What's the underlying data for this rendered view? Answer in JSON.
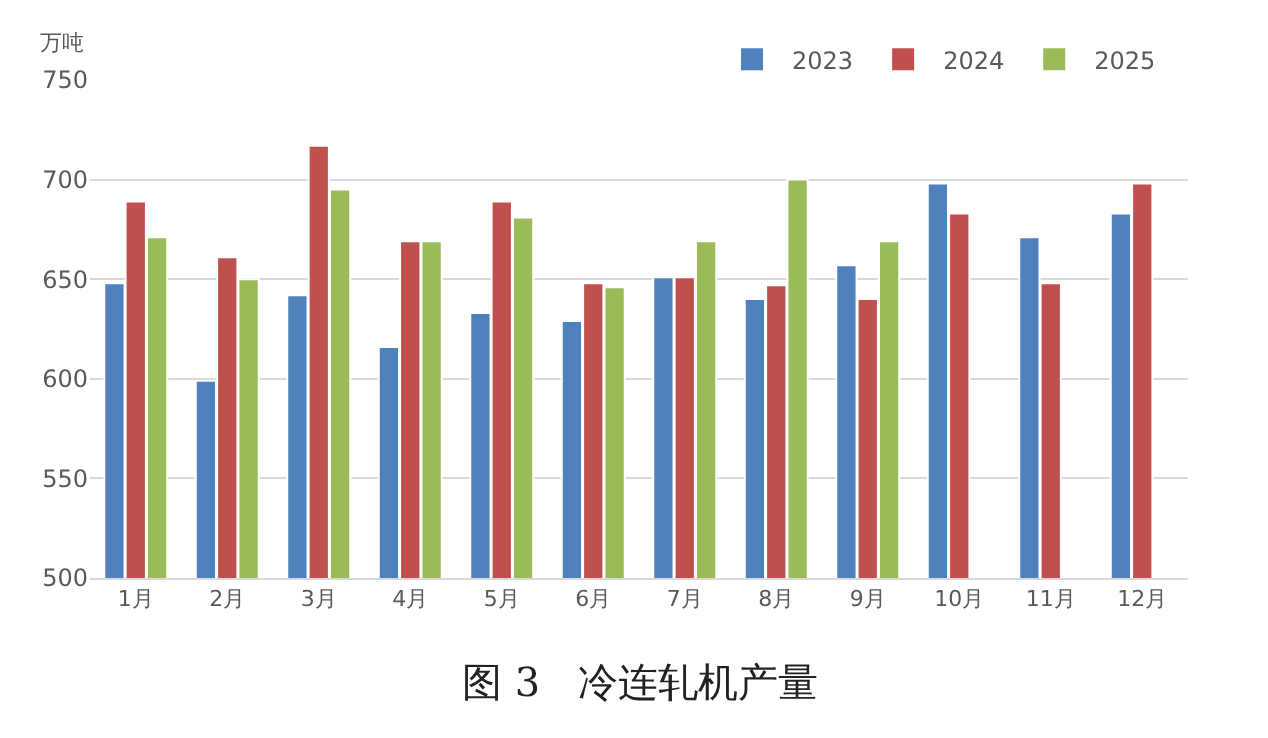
{
  "chart_data": {
    "type": "bar",
    "title": "图 3   冷连轧机产量",
    "ylabel": "万吨",
    "categories": [
      "1月",
      "2月",
      "3月",
      "4月",
      "5月",
      "6月",
      "7月",
      "8月",
      "9月",
      "10月",
      "11月",
      "12月"
    ],
    "series": [
      {
        "name": "2023",
        "color": "#4f81bd",
        "values": [
          648,
          599,
          642,
          616,
          633,
          629,
          651,
          640,
          657,
          698,
          671,
          683
        ]
      },
      {
        "name": "2024",
        "color": "#c0504d",
        "values": [
          689,
          661,
          717,
          669,
          689,
          648,
          651,
          647,
          640,
          683,
          648,
          698
        ]
      },
      {
        "name": "2025",
        "color": "#9bbb59",
        "values": [
          671,
          650,
          695,
          669,
          681,
          646,
          669,
          700,
          669,
          null,
          null,
          null
        ]
      }
    ],
    "ylim": [
      500,
      750
    ],
    "yticks": [
      500,
      550,
      600,
      650,
      700,
      750
    ],
    "grid": "y",
    "legend": "top right"
  }
}
